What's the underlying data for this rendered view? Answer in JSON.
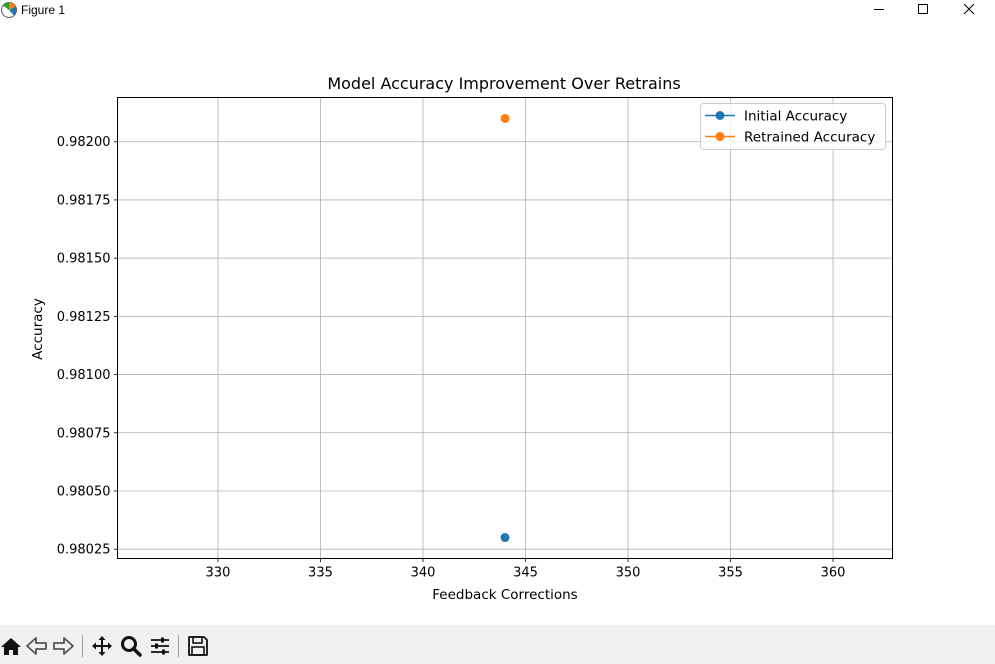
{
  "window": {
    "title": "Figure 1",
    "controls": [
      "minimize",
      "maximize",
      "close"
    ]
  },
  "toolbar": {
    "tools": [
      {
        "name": "home-icon"
      },
      {
        "name": "back-icon"
      },
      {
        "name": "forward-icon"
      },
      {
        "name": "pan-icon"
      },
      {
        "name": "zoom-icon"
      },
      {
        "name": "configure-subplots-icon"
      },
      {
        "name": "save-icon"
      }
    ]
  },
  "colors": {
    "initial": "#1f77b4",
    "retrained": "#ff7f0e",
    "grid": "#b0b0b0"
  },
  "chart_data": {
    "type": "scatter",
    "title": "Model Accuracy Improvement Over Retrains",
    "xlabel": "Feedback Corrections",
    "ylabel": "Accuracy",
    "xlim": [
      325.1,
      362.9
    ],
    "ylim": [
      0.98021,
      0.98219
    ],
    "xticks": [
      "330",
      "335",
      "340",
      "345",
      "350",
      "355",
      "360"
    ],
    "yticks": [
      "0.98025",
      "0.98050",
      "0.98075",
      "0.98100",
      "0.98125",
      "0.98150",
      "0.98175",
      "0.98200"
    ],
    "grid": true,
    "legend_position": "top-right",
    "series": [
      {
        "name": "Initial Accuracy",
        "color": "#1f77b4",
        "points": [
          {
            "x": 344,
            "y": 0.9803
          }
        ]
      },
      {
        "name": "Retrained Accuracy",
        "color": "#ff7f0e",
        "points": [
          {
            "x": 344,
            "y": 0.9821
          }
        ]
      }
    ]
  }
}
